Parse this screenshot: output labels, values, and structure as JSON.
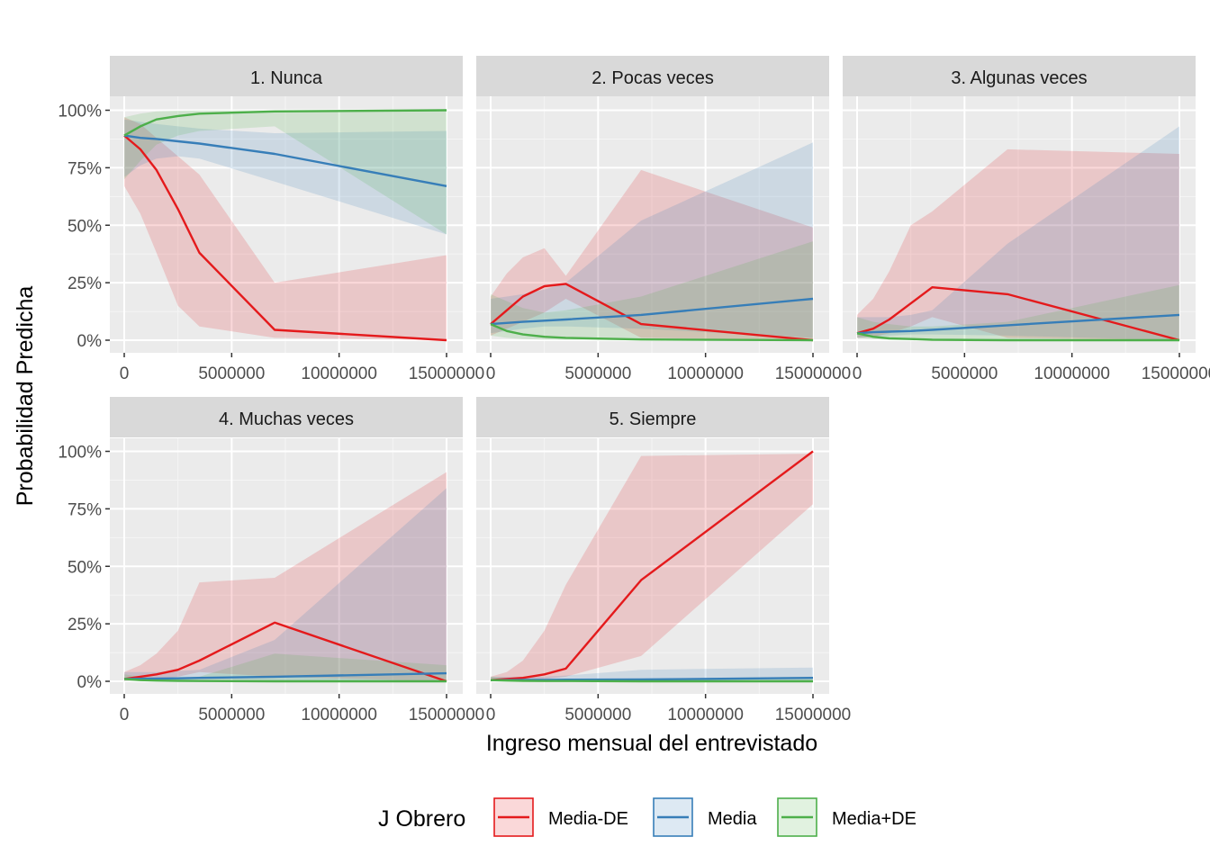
{
  "chart_data": {
    "type": "line",
    "xlabel": "Ingreso mensual del entrevistado",
    "ylabel": "Probabilidad Predicha",
    "xlim": [
      0,
      15000000
    ],
    "ylim": [
      0,
      1
    ],
    "x_ticks": [
      0,
      5000000,
      10000000,
      15000000
    ],
    "x_tick_labels": [
      "0",
      "5000000",
      "10000000",
      "15000000"
    ],
    "y_ticks": [
      0,
      0.25,
      0.5,
      0.75,
      1
    ],
    "y_tick_labels": [
      "0%",
      "25%",
      "50%",
      "75%",
      "100%"
    ],
    "grid": true,
    "legend": {
      "title": "J Obrero",
      "position": "bottom",
      "entries": [
        "Media-DE",
        "Media",
        "Media+DE"
      ]
    },
    "colors": {
      "Media-DE": "#E41A1C",
      "Media": "#377EB8",
      "Media+DE": "#4DAF4A"
    },
    "x": [
      0,
      750000,
      1500000,
      2500000,
      3500000,
      7000000,
      15000000
    ],
    "panels": [
      {
        "title": "1. Nunca",
        "series": [
          {
            "name": "Media-DE",
            "values": [
              0.89,
              0.83,
              0.74,
              0.57,
              0.38,
              0.045,
              0.0
            ],
            "lower": [
              0.67,
              0.55,
              0.38,
              0.15,
              0.06,
              0.01,
              0.0
            ],
            "upper": [
              0.97,
              0.94,
              0.88,
              0.8,
              0.72,
              0.25,
              0.37
            ]
          },
          {
            "name": "Media",
            "values": [
              0.89,
              0.88,
              0.875,
              0.865,
              0.855,
              0.81,
              0.67
            ],
            "lower": [
              0.71,
              0.76,
              0.79,
              0.8,
              0.79,
              0.69,
              0.46
            ],
            "upper": [
              0.96,
              0.95,
              0.94,
              0.93,
              0.92,
              0.9,
              0.91
            ]
          },
          {
            "name": "Media+DE",
            "values": [
              0.89,
              0.93,
              0.96,
              0.975,
              0.985,
              0.995,
              1.0
            ],
            "lower": [
              0.7,
              0.78,
              0.85,
              0.89,
              0.91,
              0.93,
              0.46
            ],
            "upper": [
              0.97,
              0.985,
              0.995,
              0.998,
              0.999,
              1.0,
              1.0
            ]
          }
        ]
      },
      {
        "title": "2. Pocas veces",
        "series": [
          {
            "name": "Media-DE",
            "values": [
              0.07,
              0.13,
              0.19,
              0.235,
              0.245,
              0.07,
              0.0
            ],
            "lower": [
              0.02,
              0.05,
              0.08,
              0.12,
              0.18,
              0.01,
              0.0
            ],
            "upper": [
              0.19,
              0.29,
              0.36,
              0.4,
              0.28,
              0.74,
              0.49
            ]
          },
          {
            "name": "Media",
            "values": [
              0.07,
              0.075,
              0.08,
              0.085,
              0.09,
              0.11,
              0.18
            ],
            "lower": [
              0.03,
              0.04,
              0.05,
              0.06,
              0.06,
              0.05,
              0.01
            ],
            "upper": [
              0.18,
              0.19,
              0.2,
              0.22,
              0.25,
              0.52,
              0.86
            ]
          },
          {
            "name": "Media+DE",
            "values": [
              0.07,
              0.04,
              0.025,
              0.015,
              0.01,
              0.003,
              0.0
            ],
            "lower": [
              0.02,
              0.01,
              0.005,
              0.002,
              0.001,
              0.0,
              0.0
            ],
            "upper": [
              0.2,
              0.17,
              0.14,
              0.12,
              0.13,
              0.19,
              0.43
            ]
          }
        ]
      },
      {
        "title": "3. Algunas veces",
        "series": [
          {
            "name": "Media-DE",
            "values": [
              0.03,
              0.05,
              0.09,
              0.16,
              0.23,
              0.2,
              0.0
            ],
            "lower": [
              0.01,
              0.015,
              0.03,
              0.06,
              0.1,
              0.01,
              0.0
            ],
            "upper": [
              0.11,
              0.18,
              0.3,
              0.5,
              0.56,
              0.83,
              0.81
            ]
          },
          {
            "name": "Media",
            "values": [
              0.03,
              0.035,
              0.037,
              0.04,
              0.045,
              0.065,
              0.11
            ],
            "lower": [
              0.01,
              0.015,
              0.02,
              0.025,
              0.025,
              0.02,
              0.0
            ],
            "upper": [
              0.1,
              0.1,
              0.1,
              0.11,
              0.13,
              0.42,
              0.93
            ]
          },
          {
            "name": "Media+DE",
            "values": [
              0.03,
              0.015,
              0.008,
              0.005,
              0.002,
              0.0,
              0.0
            ],
            "lower": [
              0.01,
              0.005,
              0.002,
              0.001,
              0.0,
              0.0,
              0.0
            ],
            "upper": [
              0.1,
              0.08,
              0.07,
              0.06,
              0.06,
              0.08,
              0.24
            ]
          }
        ]
      },
      {
        "title": "4. Muchas veces",
        "series": [
          {
            "name": "Media-DE",
            "values": [
              0.01,
              0.02,
              0.03,
              0.05,
              0.09,
              0.255,
              0.0
            ],
            "lower": [
              0.002,
              0.005,
              0.01,
              0.02,
              0.04,
              0.02,
              0.0
            ],
            "upper": [
              0.04,
              0.07,
              0.12,
              0.22,
              0.43,
              0.45,
              0.91
            ]
          },
          {
            "name": "Media",
            "values": [
              0.01,
              0.011,
              0.012,
              0.013,
              0.015,
              0.02,
              0.035
            ],
            "lower": [
              0.003,
              0.004,
              0.005,
              0.006,
              0.007,
              0.005,
              0.0
            ],
            "upper": [
              0.04,
              0.04,
              0.04,
              0.045,
              0.05,
              0.18,
              0.84
            ]
          },
          {
            "name": "Media+DE",
            "values": [
              0.01,
              0.005,
              0.003,
              0.002,
              0.001,
              0.0,
              0.0
            ],
            "lower": [
              0.002,
              0.001,
              0.0,
              0.0,
              0.0,
              0.0,
              0.0
            ],
            "upper": [
              0.03,
              0.02,
              0.015,
              0.015,
              0.02,
              0.12,
              0.07
            ]
          }
        ]
      },
      {
        "title": "5. Siempre",
        "series": [
          {
            "name": "Media-DE",
            "values": [
              0.005,
              0.01,
              0.015,
              0.03,
              0.055,
              0.44,
              1.0
            ],
            "lower": [
              0.001,
              0.002,
              0.004,
              0.01,
              0.02,
              0.11,
              0.77
            ],
            "upper": [
              0.02,
              0.04,
              0.09,
              0.22,
              0.42,
              0.98,
              0.99
            ]
          },
          {
            "name": "Media",
            "values": [
              0.005,
              0.005,
              0.006,
              0.006,
              0.007,
              0.008,
              0.015
            ],
            "lower": [
              0.001,
              0.001,
              0.002,
              0.002,
              0.002,
              0.001,
              0.0
            ],
            "upper": [
              0.02,
              0.02,
              0.02,
              0.02,
              0.025,
              0.05,
              0.06
            ]
          },
          {
            "name": "Media+DE",
            "values": [
              0.005,
              0.003,
              0.002,
              0.001,
              0.001,
              0.0,
              0.0
            ],
            "lower": [
              0.001,
              0.0,
              0.0,
              0.0,
              0.0,
              0.0,
              0.0
            ],
            "upper": [
              0.02,
              0.015,
              0.01,
              0.01,
              0.01,
              0.01,
              0.02
            ]
          }
        ]
      }
    ]
  }
}
